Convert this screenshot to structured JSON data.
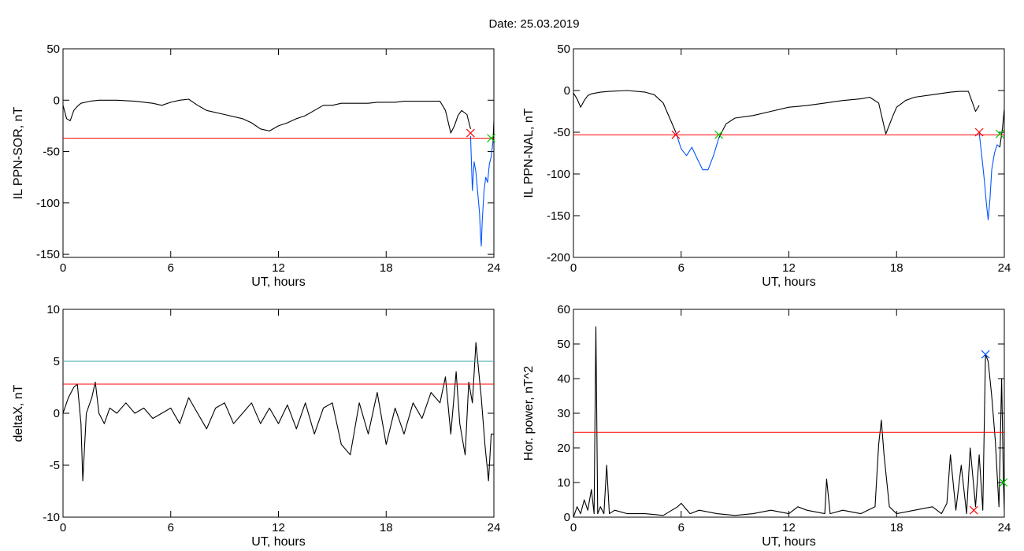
{
  "suptitle": "Date:  25.03.2019",
  "colors": {
    "trace": "#000000",
    "threshold": "#ff0000",
    "blue": "#0055ff",
    "green": "#00cc00",
    "cyan": "#3aa6a6"
  },
  "chart_data": [
    {
      "type": "line",
      "xlabel": "UT, hours",
      "ylabel": "IL PPN-SOR, nT",
      "xlim": [
        0,
        24
      ],
      "ylim": [
        -153,
        50
      ],
      "xticks": [
        0,
        6,
        12,
        18,
        24
      ],
      "yticks": [
        50,
        0,
        -50,
        -100,
        -150
      ],
      "series": [
        {
          "role": "trace",
          "color": "#000000",
          "x": [
            0,
            0.2,
            0.4,
            0.6,
            0.8,
            1,
            1.5,
            2,
            3,
            4,
            5,
            5.5,
            6,
            6.5,
            7,
            7.5,
            8,
            9,
            10,
            10.5,
            11,
            11.5,
            12,
            12.5,
            13,
            13.5,
            14,
            14.5,
            15,
            15.5,
            16,
            16.5,
            17,
            17.5,
            18,
            18.5,
            19,
            19.5,
            20,
            20.5,
            21,
            21.3,
            21.6,
            21.8,
            22,
            22.2,
            22.5,
            22.7
          ],
          "y": [
            -5,
            -18,
            -20,
            -10,
            -6,
            -3,
            -1,
            0,
            0,
            -1,
            -3,
            -5,
            -2,
            0,
            1,
            -5,
            -10,
            -14,
            -18,
            -22,
            -28,
            -30,
            -25,
            -22,
            -18,
            -15,
            -10,
            -5,
            -5,
            -3,
            -3,
            -3,
            -3,
            -2,
            -2,
            -2,
            -1,
            -1,
            -1,
            -1,
            -1,
            -10,
            -32,
            -25,
            -15,
            -10,
            -14,
            -28
          ]
        },
        {
          "role": "disturbance",
          "color": "#0055ff",
          "x": [
            22.7,
            22.8,
            22.9,
            23.0,
            23.1,
            23.2,
            23.25,
            23.3,
            23.35,
            23.45,
            23.55,
            23.65,
            23.75,
            23.85,
            23.95
          ],
          "y": [
            -35,
            -88,
            -60,
            -70,
            -90,
            -110,
            -130,
            -142,
            -118,
            -88,
            -75,
            -80,
            -62,
            -55,
            -40
          ]
        },
        {
          "role": "recovery",
          "color": "#000000",
          "x": [
            23.95,
            24
          ],
          "y": [
            -40,
            -20
          ]
        },
        {
          "role": "threshold",
          "color": "#ff0000",
          "x": [
            0,
            24
          ],
          "y": [
            -37,
            -37
          ]
        }
      ],
      "markers": [
        {
          "x": 22.7,
          "y": -32,
          "color": "#ff0000",
          "symbol": "x"
        },
        {
          "x": 23.85,
          "y": -37,
          "color": "#00cc00",
          "symbol": "x"
        }
      ]
    },
    {
      "type": "line",
      "xlabel": "UT, hours",
      "ylabel": "IL PPN-NAL, nT",
      "xlim": [
        0,
        24
      ],
      "ylim": [
        -200,
        50
      ],
      "xticks": [
        0,
        6,
        12,
        18,
        24
      ],
      "yticks": [
        50,
        0,
        -50,
        -100,
        -150,
        -200
      ],
      "series": [
        {
          "role": "trace",
          "color": "#000000",
          "x": [
            0,
            0.2,
            0.4,
            0.6,
            0.8,
            1,
            1.5,
            2,
            3,
            4,
            4.5,
            5,
            5.2,
            5.4,
            5.7
          ],
          "y": [
            -3,
            -10,
            -20,
            -12,
            -6,
            -4,
            -2,
            -1,
            0,
            -2,
            -5,
            -15,
            -25,
            -35,
            -50
          ]
        },
        {
          "role": "disturbance",
          "color": "#0055ff",
          "x": [
            5.7,
            6,
            6.3,
            6.6,
            6.9,
            7.2,
            7.5,
            7.8,
            8.1
          ],
          "y": [
            -50,
            -70,
            -78,
            -68,
            -82,
            -95,
            -95,
            -78,
            -57
          ]
        },
        {
          "role": "trace",
          "color": "#000000",
          "x": [
            8.1,
            8.5,
            9,
            10,
            11,
            12,
            13,
            14,
            15,
            16,
            16.5,
            17,
            17.4,
            17.8,
            18,
            18.5,
            19,
            20,
            21,
            21.5,
            22,
            22.4,
            22.6
          ],
          "y": [
            -57,
            -40,
            -33,
            -30,
            -25,
            -20,
            -18,
            -15,
            -12,
            -10,
            -8,
            -15,
            -52,
            -30,
            -20,
            -12,
            -8,
            -5,
            -2,
            -1,
            -1,
            -25,
            -18
          ]
        },
        {
          "role": "disturbance",
          "color": "#0055ff",
          "x": [
            22.6,
            22.8,
            22.9,
            23.0,
            23.1,
            23.2,
            23.3,
            23.45,
            23.6,
            23.75
          ],
          "y": [
            -50,
            -90,
            -110,
            -135,
            -155,
            -130,
            -95,
            -75,
            -65,
            -68
          ]
        },
        {
          "role": "recovery",
          "color": "#000000",
          "x": [
            23.75,
            23.9,
            24
          ],
          "y": [
            -68,
            -45,
            -22
          ]
        },
        {
          "role": "threshold",
          "color": "#ff0000",
          "x": [
            0,
            24
          ],
          "y": [
            -53,
            -53
          ]
        }
      ],
      "markers": [
        {
          "x": 5.7,
          "y": -53,
          "color": "#ff0000",
          "symbol": "x"
        },
        {
          "x": 8.1,
          "y": -53,
          "color": "#00cc00",
          "symbol": "x"
        },
        {
          "x": 22.6,
          "y": -50,
          "color": "#ff0000",
          "symbol": "x"
        },
        {
          "x": 23.75,
          "y": -52,
          "color": "#00cc00",
          "symbol": "x"
        }
      ]
    },
    {
      "type": "line",
      "xlabel": "UT, hours",
      "ylabel": "deltaX, nT",
      "xlim": [
        0,
        24
      ],
      "ylim": [
        -10,
        10
      ],
      "xticks": [
        0,
        6,
        12,
        18,
        24
      ],
      "yticks": [
        10,
        5,
        0,
        -5,
        -10
      ],
      "series": [
        {
          "role": "trace",
          "color": "#000000",
          "x": [
            0,
            0.3,
            0.6,
            0.8,
            1.0,
            1.1,
            1.3,
            1.6,
            1.8,
            2.0,
            2.3,
            2.6,
            3,
            3.5,
            4,
            4.5,
            5,
            5.5,
            6,
            6.5,
            7,
            7.5,
            8,
            8.5,
            9,
            9.5,
            10,
            10.5,
            11,
            11.5,
            12,
            12.5,
            13,
            13.5,
            14,
            14.5,
            15,
            15.5,
            16,
            16.5,
            17,
            17.5,
            18,
            18.5,
            19,
            19.5,
            20,
            20.5,
            21,
            21.3,
            21.6,
            21.9,
            22.1,
            22.4,
            22.6,
            22.8,
            23.0,
            23.3,
            23.5,
            23.7,
            23.85,
            24
          ],
          "y": [
            0,
            1.5,
            2.5,
            2.8,
            -1,
            -6.5,
            0,
            1.5,
            3,
            0,
            -1,
            0.5,
            0,
            1,
            0,
            0.5,
            -0.5,
            0,
            0.5,
            -1,
            1.5,
            0,
            -1.5,
            0.5,
            1,
            -1,
            0,
            1,
            -1,
            0.5,
            -1,
            0.8,
            -1.5,
            1,
            -2,
            0.5,
            1,
            -3,
            -4,
            1,
            -2,
            2,
            -3,
            0.5,
            -2,
            1,
            -0.5,
            2,
            1,
            3.5,
            -2,
            4,
            -1,
            -4,
            3,
            1,
            6.8,
            1.5,
            -3,
            -6.5,
            -2,
            -2
          ]
        },
        {
          "role": "threshold",
          "color": "#ff0000",
          "x": [
            0,
            24
          ],
          "y": [
            2.8,
            2.8
          ]
        },
        {
          "role": "threshold-upper",
          "color": "#3aa6a6",
          "x": [
            0,
            24
          ],
          "y": [
            5,
            5
          ]
        }
      ],
      "markers": []
    },
    {
      "type": "line",
      "xlabel": "UT, hours",
      "ylabel": "Hor. power, nT^2",
      "xlim": [
        0,
        24
      ],
      "ylim": [
        0,
        60
      ],
      "xticks": [
        0,
        6,
        12,
        18,
        24
      ],
      "yticks": [
        60,
        50,
        40,
        30,
        20,
        10,
        0
      ],
      "series": [
        {
          "role": "trace",
          "color": "#000000",
          "x": [
            0,
            0.2,
            0.4,
            0.6,
            0.8,
            1.0,
            1.15,
            1.25,
            1.35,
            1.5,
            1.7,
            1.85,
            2.0,
            2.3,
            3,
            4,
            5,
            5.8,
            6,
            6.5,
            7,
            8,
            9,
            10,
            11,
            12,
            12.5,
            13,
            14,
            14.1,
            14.3,
            15,
            16,
            16.8,
            17.0,
            17.15,
            17.3,
            17.6,
            18,
            19,
            20,
            20.5,
            20.8,
            21,
            21.3,
            21.6,
            21.9,
            22.1,
            22.4,
            22.6,
            22.8,
            22.95,
            23.1,
            23.3,
            23.5,
            23.7,
            23.85,
            23.95,
            24
          ],
          "y": [
            0,
            3,
            1,
            5,
            2,
            8,
            1,
            55,
            1,
            3,
            1,
            15,
            1,
            2,
            1,
            1,
            0.5,
            3,
            4,
            1,
            2,
            1,
            0.5,
            1,
            2,
            1,
            3,
            2,
            1,
            11,
            1,
            2,
            1,
            3,
            21,
            28,
            18,
            3,
            1,
            2,
            3,
            1,
            4,
            18,
            2,
            15,
            1,
            20,
            3,
            18,
            2,
            47,
            45,
            35,
            22,
            3,
            40,
            10,
            2
          ]
        },
        {
          "role": "threshold",
          "color": "#ff0000",
          "x": [
            0,
            24
          ],
          "y": [
            24.5,
            24.5
          ]
        }
      ],
      "markers": [
        {
          "x": 22.3,
          "y": 2,
          "color": "#ff0000",
          "symbol": "x"
        },
        {
          "x": 22.95,
          "y": 47,
          "color": "#0055ff",
          "symbol": "x"
        },
        {
          "x": 23.95,
          "y": 10,
          "color": "#00cc00",
          "symbol": "x"
        }
      ]
    }
  ]
}
